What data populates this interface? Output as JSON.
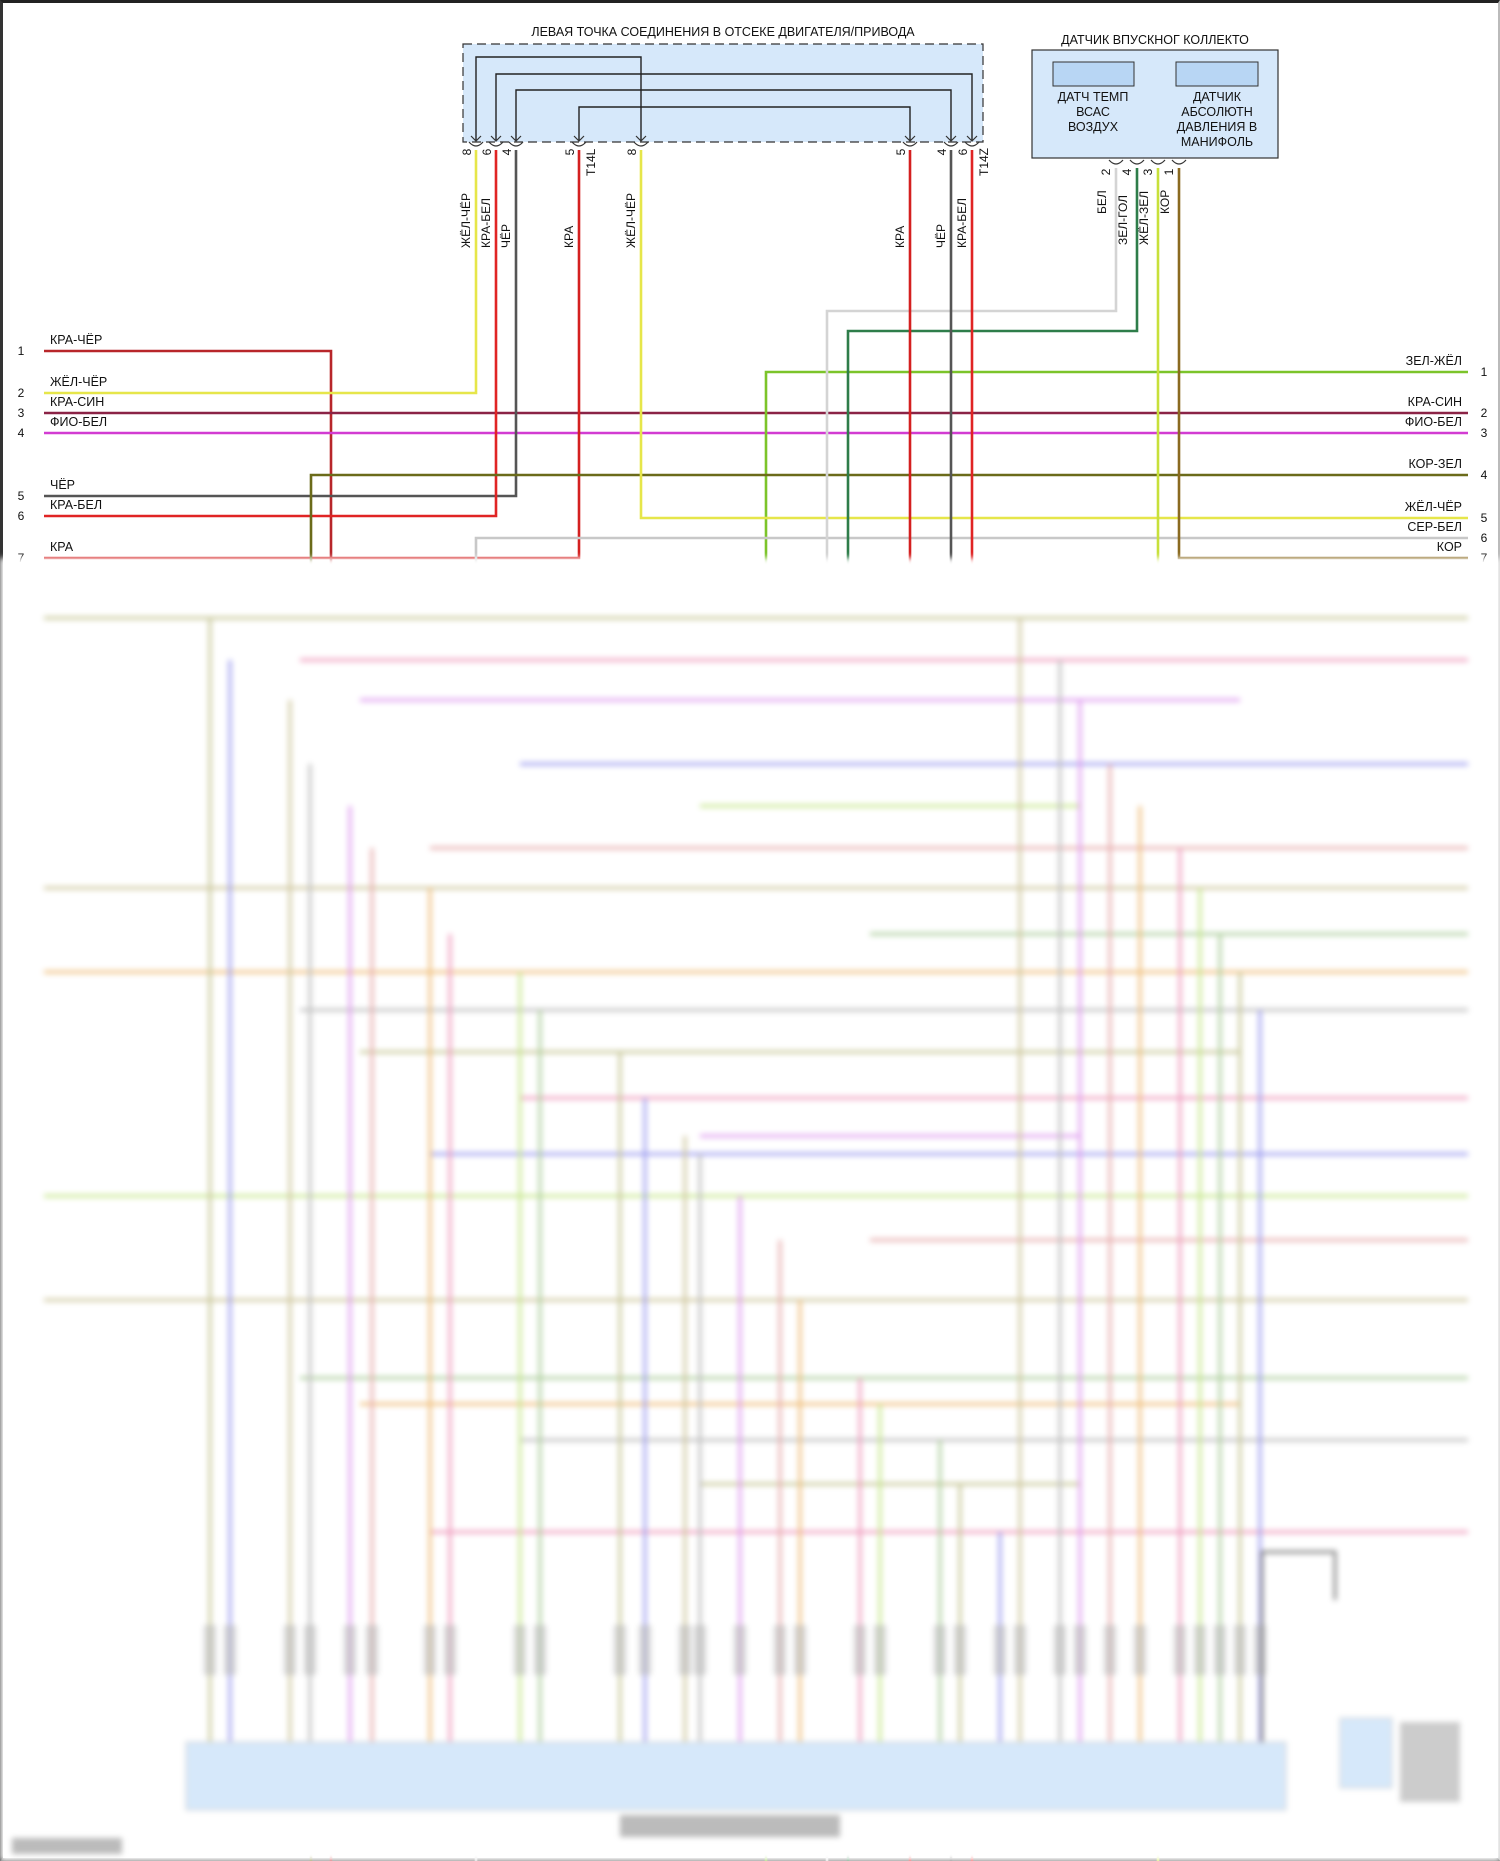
{
  "connector_left": {
    "title": "ЛЕВАЯ ТОЧКА СОЕДИНЕНИЯ В ОТСЕКЕ ДВИГАТЕЛЯ/ПРИВОДА",
    "id_left": "T14L",
    "id_right": "T14Z",
    "pins": [
      {
        "num": "8",
        "wire": "ЖЁЛ-ЧЁР"
      },
      {
        "num": "6",
        "wire": "КРА-БЕЛ"
      },
      {
        "num": "4",
        "wire": "ЧЁР"
      },
      {
        "num": "5",
        "wire": "КРА"
      },
      {
        "num": "8",
        "wire": "ЖЁЛ-ЧЁР"
      },
      {
        "num": "5",
        "wire": "КРА"
      },
      {
        "num": "4",
        "wire": "ЧЁР"
      },
      {
        "num": "6",
        "wire": "КРА-БЕЛ"
      }
    ]
  },
  "sensor": {
    "title": "ДАТЧИК ВПУСКНОГ КОЛЛЕКТО",
    "left_label": [
      "ДАТЧ ТЕМП",
      "ВСАС",
      "ВОЗДУХ"
    ],
    "right_label": [
      "ДАТЧИК",
      "АБСОЛЮТН",
      "ДАВЛЕНИЯ В",
      "МАНИФОЛЬ"
    ],
    "pins": [
      {
        "num": "2",
        "wire": "БЕЛ"
      },
      {
        "num": "4",
        "wire": "ЗЕЛ-ГОЛ"
      },
      {
        "num": "3",
        "wire": "ЖЁЛ-ЗЕЛ"
      },
      {
        "num": "1",
        "wire": "КОР"
      }
    ]
  },
  "left_wires": [
    {
      "num": "1",
      "label": "КРА-ЧЁР"
    },
    {
      "num": "2",
      "label": "ЖЁЛ-ЧЁР"
    },
    {
      "num": "3",
      "label": "КРА-СИН"
    },
    {
      "num": "4",
      "label": "ФИО-БЕЛ"
    },
    {
      "num": "5",
      "label": "ЧЁР"
    },
    {
      "num": "6",
      "label": "КРА-БЕЛ"
    },
    {
      "num": "7",
      "label": "КРА"
    }
  ],
  "right_wires": [
    {
      "num": "1",
      "label": "ЗЕЛ-ЖЁЛ"
    },
    {
      "num": "2",
      "label": "КРА-СИН"
    },
    {
      "num": "3",
      "label": "ФИО-БЕЛ"
    },
    {
      "num": "4",
      "label": "КОР-ЗЕЛ"
    },
    {
      "num": "5",
      "label": "ЖЁЛ-ЧЁР"
    },
    {
      "num": "6",
      "label": "СЕР-БЕЛ"
    },
    {
      "num": "7",
      "label": "КОР"
    }
  ],
  "colors": {
    "kra_cher": "#b8262a",
    "zhel_cher": "#e6e64a",
    "kra_sin": "#8b2346",
    "fio_bel": "#d23cd2",
    "cher": "#555555",
    "kra_bel": "#e02424",
    "kra": "#d42020",
    "zel_zhel": "#7cc42a",
    "kor_zel": "#6b6b1a",
    "ser_bel": "#c8c8c8",
    "kor": "#8a6a20",
    "bel": "#d4d4d4",
    "zel_gol": "#2e7d4a",
    "zhel_zel": "#c8e03a",
    "box_fill": "#d6e8fa"
  }
}
